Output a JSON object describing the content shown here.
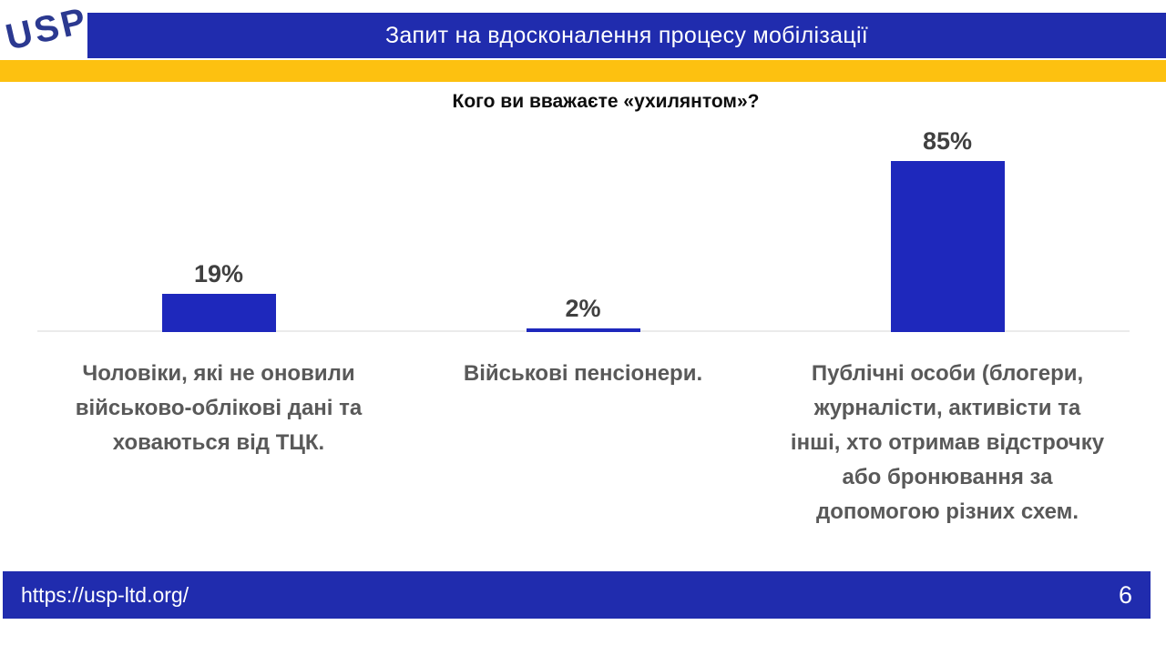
{
  "logo": {
    "text": "USP"
  },
  "header": {
    "title": "Запит на вдосконалення процесу мобілізації"
  },
  "footer": {
    "url": "https://usp-ltd.org/",
    "page_number": "6"
  },
  "colors": {
    "header_footer_blue": "#202CAE",
    "bar_blue": "#1E28BC",
    "accent_yellow": "#FDC110",
    "logo_navy": "#2B3990",
    "category_label_gray": "#595959",
    "value_label_gray": "#404040",
    "axis_line_gray": "#EBEBEB"
  },
  "chart_data": {
    "type": "bar",
    "title": "Кого ви вважаєте «ухилянтом»?",
    "categories": [
      "Чоловіки, які не оновили\nвійськово-облікові дані та\nховаються від ТЦК.",
      "Військові пенсіонери.",
      "Публічні особи (блогери,\nжурналісти, активісти та\nінші, хто отримав відстрочку\nабо бронювання за\nдопомогою різних схем."
    ],
    "values": [
      19,
      2,
      85
    ],
    "value_labels": [
      "19%",
      "2%",
      "85%"
    ],
    "ylabel": "",
    "xlabel": "",
    "ylim": [
      0,
      100
    ],
    "grid": false,
    "legend": false,
    "bar_color": "#1E28BC"
  }
}
